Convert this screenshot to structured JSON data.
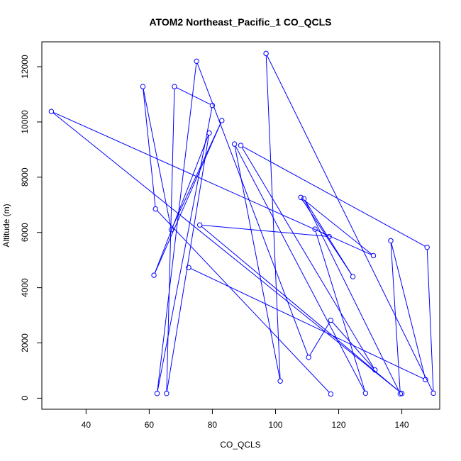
{
  "chart_data": {
    "type": "line",
    "title": "ATOM2 Northeast_Pacific_1 CO_QCLS",
    "xlabel": "CO_QCLS",
    "ylabel": "Altitude (m)",
    "xlim": [
      26,
      152
    ],
    "ylim": [
      -400,
      12900
    ],
    "xticks": [
      40,
      60,
      80,
      100,
      120,
      140
    ],
    "yticks": [
      0,
      2000,
      4000,
      6000,
      8000,
      10000,
      12000
    ],
    "grid": false,
    "legend": "none",
    "series": [
      {
        "color": "#0000ff",
        "marker": "open-circle",
        "x": [
          117.5,
          62,
          58,
          67,
          83,
          61.5,
          79,
          65.5,
          68,
          80,
          62.5,
          75,
          110.5,
          117.5,
          131.5,
          89,
          148,
          150,
          97,
          101.5,
          87,
          128.5,
          112.5,
          117,
          76,
          140,
          29,
          131,
          108,
          124.5,
          109,
          139.5,
          136.5,
          147.5,
          72.5
        ],
        "y": [
          150,
          6850,
          11280,
          6100,
          10050,
          4450,
          9600,
          170,
          11280,
          10600,
          170,
          12200,
          1480,
          2820,
          1020,
          9150,
          5460,
          180,
          12480,
          620,
          9200,
          180,
          6120,
          5850,
          6270,
          170,
          10380,
          5160,
          7270,
          4400,
          7220,
          160,
          5700,
          670,
          4730
        ]
      }
    ]
  }
}
